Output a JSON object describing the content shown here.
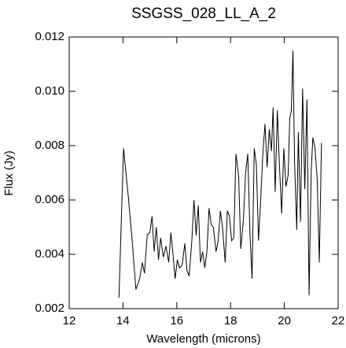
{
  "chart_data": {
    "type": "line",
    "title": "SSGSS_028_LL_A_2",
    "x_label": "Wavelength (microns)",
    "y_label": "Flux (Jy)",
    "xlim": [
      12,
      22
    ],
    "xticks": [
      12,
      14,
      16,
      18,
      20,
      22
    ],
    "ylim": [
      0.002,
      0.012
    ],
    "yticks": [
      0.002,
      0.004,
      0.006,
      0.008,
      {
        "value": 0.01,
        "label": "0.010"
      },
      0.012
    ],
    "color": "#000000",
    "x": [
      13.85,
      14.02,
      14.2,
      14.35,
      14.48,
      14.62,
      14.72,
      14.8,
      14.9,
      15.0,
      15.08,
      15.16,
      15.24,
      15.32,
      15.4,
      15.5,
      15.6,
      15.7,
      15.78,
      15.86,
      15.94,
      16.02,
      16.1,
      16.2,
      16.3,
      16.38,
      16.46,
      16.56,
      16.64,
      16.72,
      16.8,
      16.88,
      16.96,
      17.04,
      17.12,
      17.2,
      17.28,
      17.36,
      17.46,
      17.54,
      17.62,
      17.7,
      17.8,
      17.88,
      17.96,
      18.04,
      18.12,
      18.2,
      18.3,
      18.38,
      18.48,
      18.56,
      18.64,
      18.72,
      18.8,
      18.88,
      18.96,
      19.04,
      19.12,
      19.2,
      19.28,
      19.36,
      19.44,
      19.52,
      19.58,
      19.66,
      19.74,
      19.82,
      19.9,
      19.98,
      20.06,
      20.14,
      20.2,
      20.26,
      20.32,
      20.38,
      20.46,
      20.52,
      20.6,
      20.68,
      20.76,
      20.84,
      20.92,
      21.0,
      21.06,
      21.14,
      21.22,
      21.3,
      21.38
    ],
    "values": [
      0.0024,
      0.0079,
      0.0061,
      0.0044,
      0.0027,
      0.0031,
      0.0037,
      0.0033,
      0.0047,
      0.0048,
      0.0054,
      0.0041,
      0.005,
      0.0038,
      0.0046,
      0.0039,
      0.0043,
      0.0037,
      0.0048,
      0.004,
      0.0031,
      0.0038,
      0.0035,
      0.0036,
      0.0044,
      0.0034,
      0.0032,
      0.0045,
      0.006,
      0.0047,
      0.0058,
      0.0037,
      0.0041,
      0.0035,
      0.0041,
      0.0057,
      0.0051,
      0.005,
      0.0041,
      0.0045,
      0.0056,
      0.005,
      0.0037,
      0.0056,
      0.0054,
      0.0045,
      0.0046,
      0.0077,
      0.0069,
      0.0042,
      0.0053,
      0.007,
      0.0077,
      0.0048,
      0.0031,
      0.0079,
      0.0073,
      0.0045,
      0.006,
      0.0077,
      0.0088,
      0.0072,
      0.0086,
      0.0078,
      0.0094,
      0.0063,
      0.0093,
      0.0072,
      0.0055,
      0.0079,
      0.0065,
      0.0069,
      0.009,
      0.0093,
      0.0115,
      0.0074,
      0.0049,
      0.0085,
      0.0052,
      0.0101,
      0.0064,
      0.0097,
      0.0025,
      0.0071,
      0.0083,
      0.0079,
      0.0068,
      0.0037,
      0.0081
    ]
  }
}
